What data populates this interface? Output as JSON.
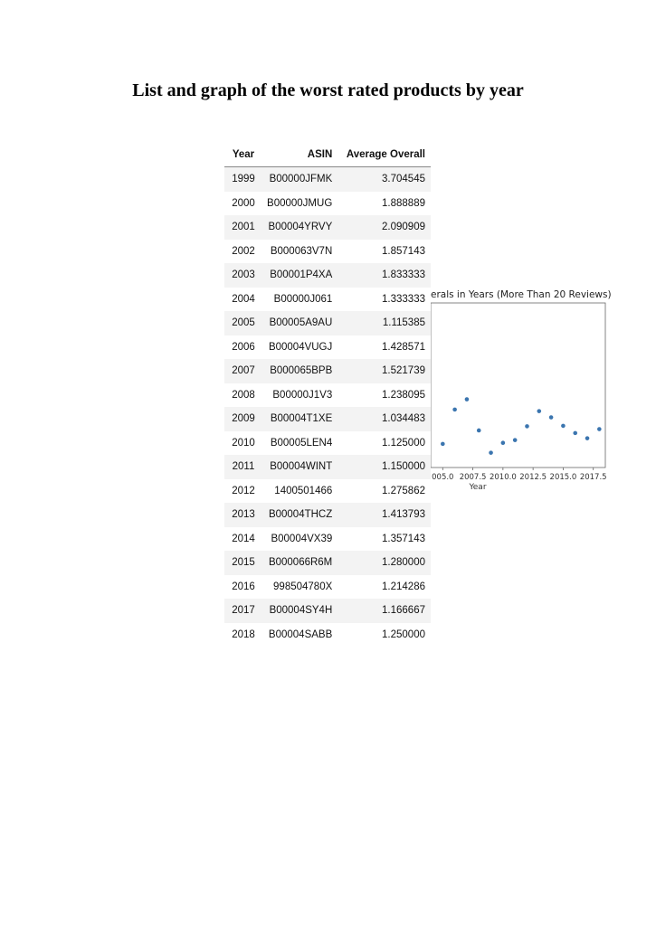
{
  "page": {
    "title": "List and graph of the worst rated products by year"
  },
  "table": {
    "columns": [
      "Year",
      "ASIN",
      "Average Overall"
    ],
    "rows": [
      [
        "1999",
        "B00000JFMK",
        "3.704545"
      ],
      [
        "2000",
        "B00000JMUG",
        "1.888889"
      ],
      [
        "2001",
        "B00004YRVY",
        "2.090909"
      ],
      [
        "2002",
        "B000063V7N",
        "1.857143"
      ],
      [
        "2003",
        "B00001P4XA",
        "1.833333"
      ],
      [
        "2004",
        "B00000J061",
        "1.333333"
      ],
      [
        "2005",
        "B00005A9AU",
        "1.115385"
      ],
      [
        "2006",
        "B00004VUGJ",
        "1.428571"
      ],
      [
        "2007",
        "B000065BPB",
        "1.521739"
      ],
      [
        "2008",
        "B00000J1V3",
        "1.238095"
      ],
      [
        "2009",
        "B00004T1XE",
        "1.034483"
      ],
      [
        "2010",
        "B00005LEN4",
        "1.125000"
      ],
      [
        "2011",
        "B00004WINT",
        "1.150000"
      ],
      [
        "2012",
        "1400501466",
        "1.275862"
      ],
      [
        "2013",
        "B00004THCZ",
        "1.413793"
      ],
      [
        "2014",
        "B00004VX39",
        "1.357143"
      ],
      [
        "2015",
        "B000066R6M",
        "1.280000"
      ],
      [
        "2016",
        "998504780X",
        "1.214286"
      ],
      [
        "2017",
        "B00004SY4H",
        "1.166667"
      ],
      [
        "2018",
        "B00004SABB",
        "1.250000"
      ]
    ]
  },
  "chart_data": {
    "type": "scatter",
    "title": "erals in Years (More Than 20 Reviews)",
    "xlabel": "Year",
    "ylabel": "",
    "xticks": [
      "005.0",
      "2007.5",
      "2010.0",
      "2012.5",
      "2015.0",
      "2017.5"
    ],
    "xtick_values": [
      2005.0,
      2007.5,
      2010.0,
      2012.5,
      2015.0,
      2017.5
    ],
    "xlim": [
      2004.0,
      2018.5
    ],
    "ylim": [
      0.9,
      2.4
    ],
    "grid": false,
    "marker_color": "#3b75af",
    "series": [
      {
        "x": [
          2005,
          2006,
          2007,
          2008,
          2009,
          2010,
          2011,
          2012,
          2013,
          2014,
          2015,
          2016,
          2017,
          2018
        ],
        "values": [
          1.115385,
          1.428571,
          1.521739,
          1.238095,
          1.034483,
          1.125,
          1.15,
          1.275862,
          1.413793,
          1.357143,
          1.28,
          1.214286,
          1.166667,
          1.25
        ]
      }
    ]
  }
}
